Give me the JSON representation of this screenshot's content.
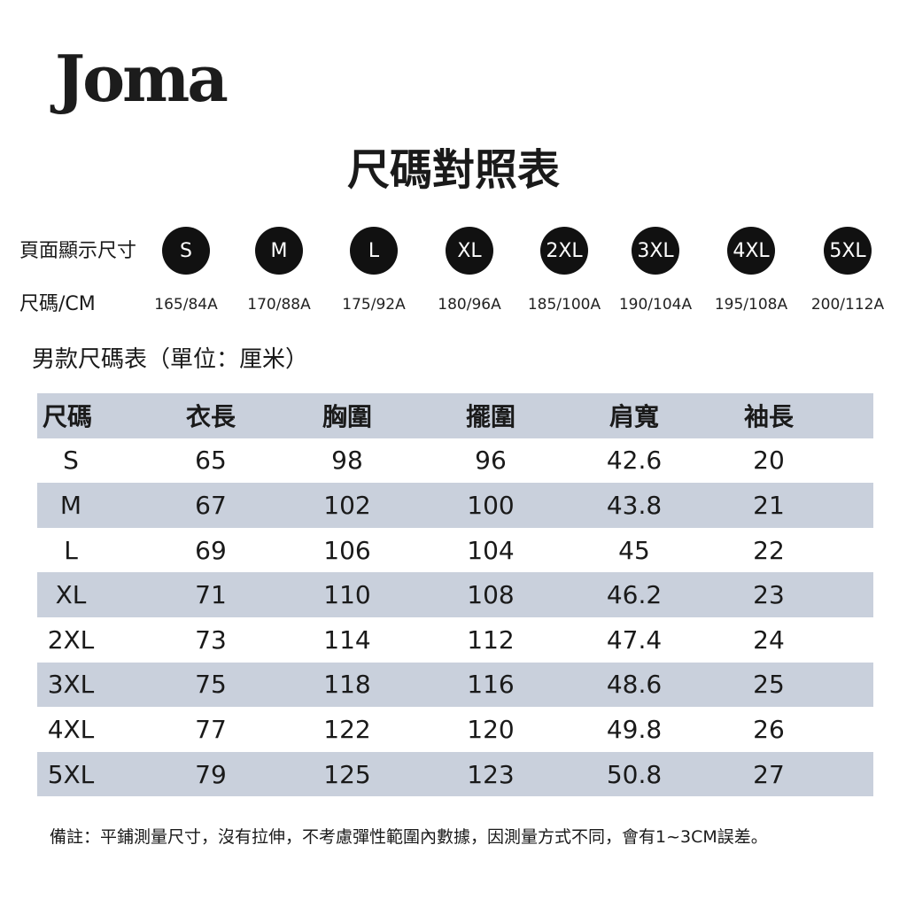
{
  "logo": "Joma",
  "title": "尺碼對照表",
  "size_display_label": "頁面顯示尺寸",
  "size_cm_label": "尺碼/CM",
  "sizes": [
    "S",
    "M",
    "L",
    "XL",
    "2XL",
    "3XL",
    "4XL",
    "5XL"
  ],
  "cm_values": [
    "165/84A",
    "170/88A",
    "175/92A",
    "180/96A",
    "185/100A",
    "190/104A",
    "195/108A",
    "200/112A"
  ],
  "table_title": "男款尺碼表（單位：厘米）",
  "table": {
    "headers": [
      "尺碼",
      "衣長",
      "胸圍",
      "擺圍",
      "肩寬",
      "袖長"
    ],
    "rows": [
      [
        "S",
        "65",
        "98",
        "96",
        "42.6",
        "20"
      ],
      [
        "M",
        "67",
        "102",
        "100",
        "43.8",
        "21"
      ],
      [
        "L",
        "69",
        "106",
        "104",
        "45",
        "22"
      ],
      [
        "XL",
        "71",
        "110",
        "108",
        "46.2",
        "23"
      ],
      [
        "2XL",
        "73",
        "114",
        "112",
        "47.4",
        "24"
      ],
      [
        "3XL",
        "75",
        "118",
        "116",
        "48.6",
        "25"
      ],
      [
        "4XL",
        "77",
        "122",
        "120",
        "49.8",
        "26"
      ],
      [
        "5XL",
        "79",
        "125",
        "123",
        "50.8",
        "27"
      ]
    ]
  },
  "note": "備註：平鋪測量尺寸，沒有拉伸，不考慮彈性範圍內數據，因測量方式不同，會有1~3CM誤差。",
  "colors": {
    "shade": "#c9d0dc",
    "circle": "#111111"
  }
}
